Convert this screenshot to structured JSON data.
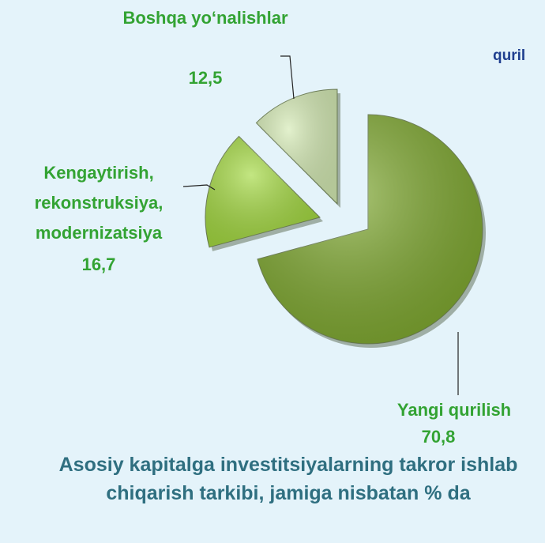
{
  "chart_data": {
    "type": "pie",
    "title": "Asosiy kapitalga investitsiyalarning takror ishlab chiqarish tarkibi, jamiga nisbatan % da",
    "annotation": "quril",
    "categories": [
      "Yangi qurilish",
      "Kengaytirish, rekonstruksiya, modernizatsiya",
      "Boshqa yo‘nalishlar"
    ],
    "values": [
      70.8,
      16.7,
      12.5
    ],
    "value_labels": [
      "70,8",
      "16,7",
      "12,5"
    ],
    "colors": [
      "#7ea82e",
      "#a3d93f",
      "#d4eab3"
    ]
  }
}
